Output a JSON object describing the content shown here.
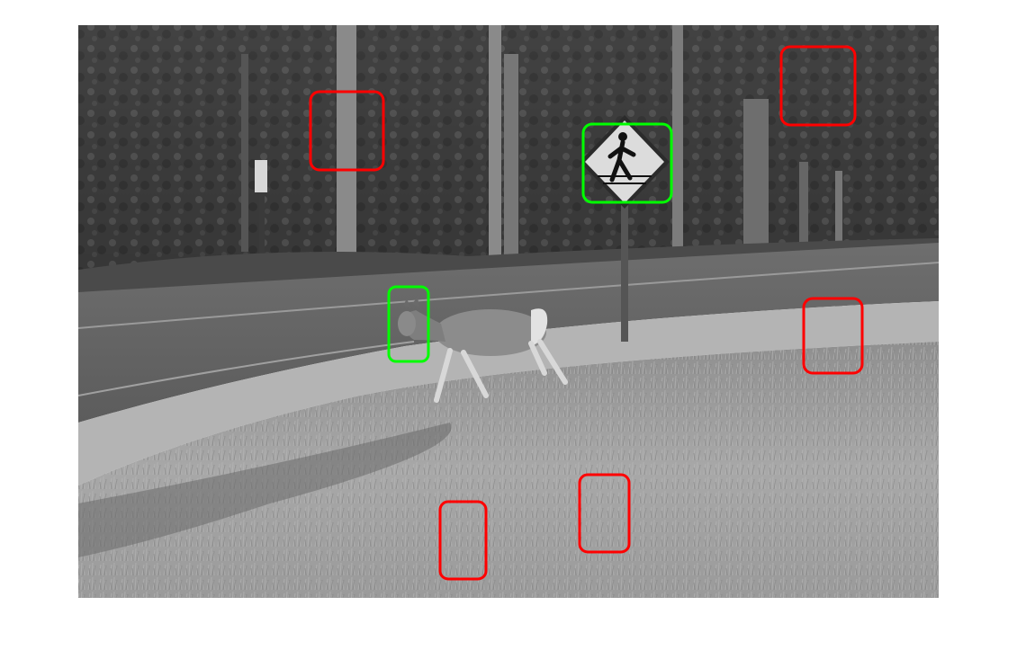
{
  "colors": {
    "background": "#ffffff",
    "positive_box": "#00ff00",
    "negative_box": "#ff0000"
  },
  "figure": {
    "kind": "grayscale photograph with detection boxes",
    "boxes": [
      {
        "label": "positive",
        "object": "pedestrian-crossing-sign"
      },
      {
        "label": "positive",
        "object": "deer-head"
      },
      {
        "label": "negative",
        "object": "tree-trunk"
      },
      {
        "label": "negative",
        "object": "pine-foliage"
      },
      {
        "label": "negative",
        "object": "roadside-grass"
      },
      {
        "label": "negative",
        "object": "grass-patch-center"
      },
      {
        "label": "negative",
        "object": "grass-patch-left"
      }
    ]
  }
}
